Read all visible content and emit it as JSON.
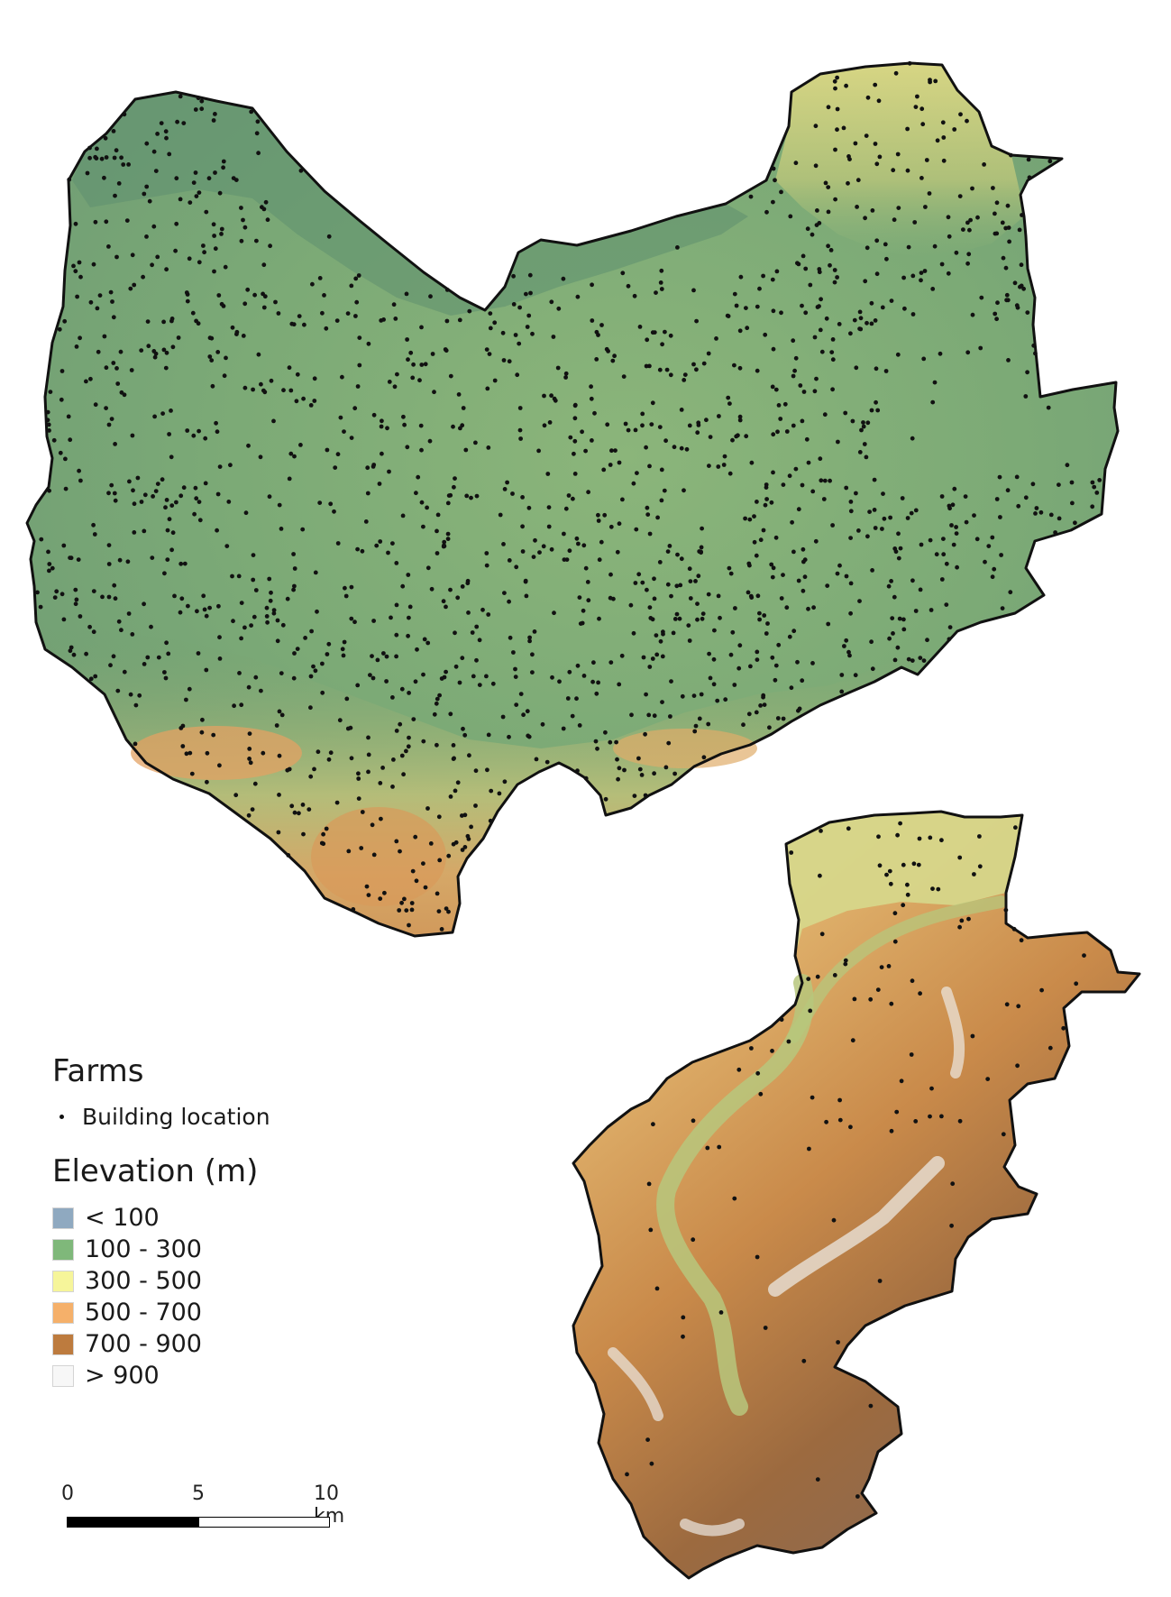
{
  "legend": {
    "farms_title": "Farms",
    "building_label": "Building location",
    "elevation_title": "Elevation (m)",
    "elevation_classes": [
      {
        "label": "< 100",
        "color": "#8fa9c0"
      },
      {
        "label": "100 - 300",
        "color": "#7fb87a"
      },
      {
        "label": "300 - 500",
        "color": "#f6f59a"
      },
      {
        "label": "500 - 700",
        "color": "#f5b06a"
      },
      {
        "label": "700 - 900",
        "color": "#bd7b3e"
      },
      {
        "label": "> 900",
        "color": "#f7f7f7"
      }
    ]
  },
  "scalebar": {
    "labels": [
      "0",
      "5",
      "10 km"
    ]
  },
  "colors": {
    "outline": "#111111",
    "lowland": "#6fa675",
    "upland": "#d8c778",
    "mountain": "#b97a3c",
    "peak": "#e8e4de"
  }
}
